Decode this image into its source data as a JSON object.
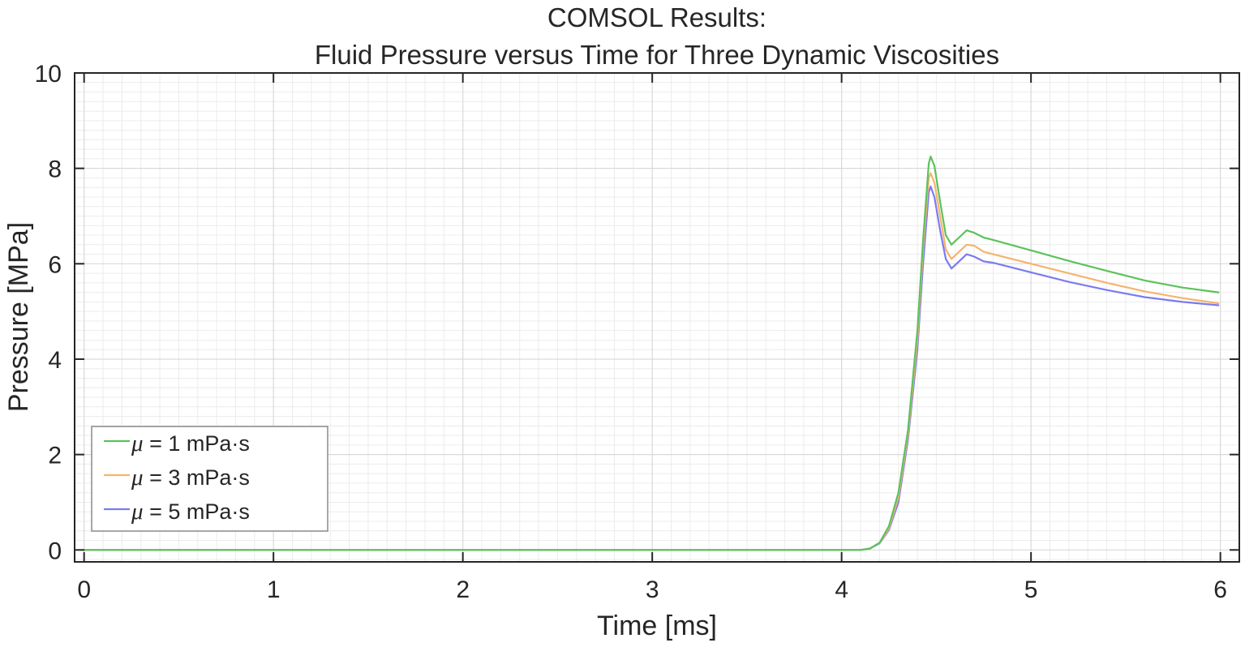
{
  "chart_data": {
    "type": "line",
    "title_line1": "COMSOL Results:",
    "title_line2": "Fluid Pressure versus Time for Three Dynamic Viscosities",
    "xlabel": "Time [ms]",
    "ylabel": "Pressure [MPa]",
    "xlim": [
      -0.05,
      6.1
    ],
    "ylim": [
      -0.25,
      10
    ],
    "xticks": [
      0,
      1,
      2,
      3,
      4,
      5,
      6
    ],
    "yticks": [
      0,
      2,
      4,
      6,
      8,
      10
    ],
    "grid": true,
    "minor_grid": true,
    "legend_position": "bottom-left",
    "series": [
      {
        "name": "μ = 1 mPa·s",
        "mu_symbol": "μ",
        "label_rest": " = 1 mPa·s",
        "color": "#5cc25c",
        "x": [
          0,
          1,
          2,
          3,
          4,
          4.1,
          4.15,
          4.2,
          4.25,
          4.3,
          4.35,
          4.4,
          4.43,
          4.46,
          4.47,
          4.49,
          4.52,
          4.55,
          4.58,
          4.62,
          4.66,
          4.7,
          4.75,
          4.8,
          5.0,
          5.2,
          5.4,
          5.6,
          5.8,
          5.99
        ],
        "y": [
          0,
          0,
          0,
          0,
          0,
          0,
          0.03,
          0.15,
          0.5,
          1.2,
          2.5,
          4.6,
          6.5,
          8.1,
          8.25,
          8.05,
          7.3,
          6.6,
          6.4,
          6.55,
          6.7,
          6.65,
          6.55,
          6.5,
          6.28,
          6.06,
          5.85,
          5.65,
          5.5,
          5.4
        ]
      },
      {
        "name": "μ = 3 mPa·s",
        "mu_symbol": "μ",
        "label_rest": " = 3 mPa·s",
        "color": "#f6b36d",
        "x": [
          0,
          1,
          2,
          3,
          4,
          4.1,
          4.15,
          4.2,
          4.25,
          4.3,
          4.35,
          4.4,
          4.43,
          4.46,
          4.47,
          4.49,
          4.52,
          4.55,
          4.58,
          4.62,
          4.66,
          4.7,
          4.75,
          4.8,
          5.0,
          5.2,
          5.4,
          5.6,
          5.8,
          5.99
        ],
        "y": [
          0,
          0,
          0,
          0,
          0,
          0,
          0.03,
          0.15,
          0.45,
          1.1,
          2.4,
          4.4,
          6.3,
          7.8,
          7.9,
          7.7,
          7.0,
          6.3,
          6.1,
          6.25,
          6.4,
          6.38,
          6.25,
          6.2,
          6.0,
          5.8,
          5.6,
          5.42,
          5.28,
          5.17
        ]
      },
      {
        "name": "μ = 5 mPa·s",
        "mu_symbol": "μ",
        "label_rest": " = 5 mPa·s",
        "color": "#7b7bf0",
        "x": [
          0,
          1,
          2,
          3,
          4,
          4.1,
          4.15,
          4.2,
          4.25,
          4.3,
          4.35,
          4.4,
          4.43,
          4.46,
          4.47,
          4.49,
          4.52,
          4.55,
          4.58,
          4.62,
          4.66,
          4.7,
          4.75,
          4.8,
          5.0,
          5.2,
          5.4,
          5.6,
          5.8,
          5.99
        ],
        "y": [
          0,
          0,
          0,
          0,
          0,
          0,
          0.03,
          0.14,
          0.42,
          1.0,
          2.3,
          4.2,
          6.0,
          7.5,
          7.62,
          7.4,
          6.7,
          6.1,
          5.9,
          6.05,
          6.2,
          6.15,
          6.05,
          6.02,
          5.82,
          5.62,
          5.45,
          5.3,
          5.2,
          5.13
        ]
      }
    ]
  }
}
